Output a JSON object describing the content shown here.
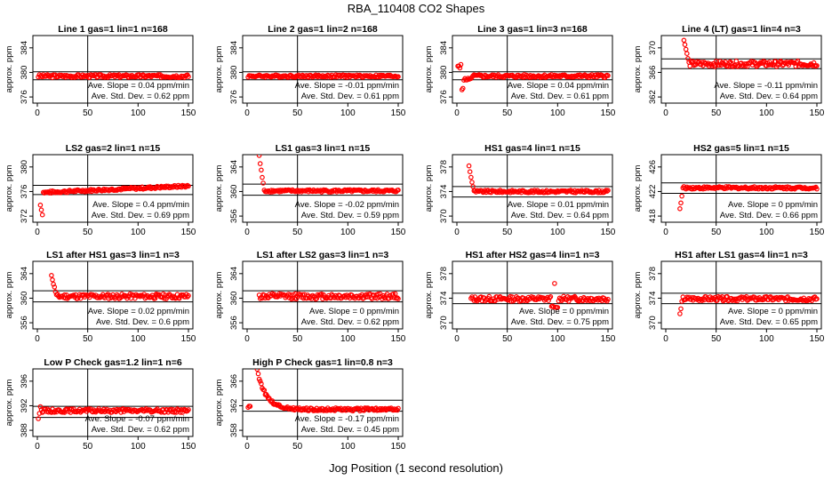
{
  "figure": {
    "title": "RBA_110408  CO2 Shapes",
    "xlabel": "Jog Position (1 second resolution)",
    "ylabel": "approx. ppm",
    "slope_prefix": "Ave. Slope = ",
    "slope_unit": " ppm/min",
    "sd_prefix": "Ave. Std. Dev. = ",
    "sd_unit": " ppm",
    "point_color": "#ff0000",
    "line_color": "#000000"
  },
  "chart_data": [
    {
      "type": "scatter",
      "title": "Line 1 gas=1 lin=1 n=168",
      "xlim": [
        0,
        150
      ],
      "xticks": [
        0,
        50,
        100,
        150
      ],
      "ylim": [
        375,
        386
      ],
      "yticks": [
        376,
        380,
        384
      ],
      "hlines": [
        378.8,
        380.1
      ],
      "vline": 50,
      "slope": "0.04",
      "sd": "0.62",
      "shape": "flat",
      "base": 379.4,
      "noise": 0.25,
      "start": 1
    },
    {
      "type": "scatter",
      "title": "Line 2 gas=1 lin=2 n=168",
      "xlim": [
        0,
        150
      ],
      "xticks": [
        0,
        50,
        100,
        150
      ],
      "ylim": [
        375,
        386
      ],
      "yticks": [
        376,
        380,
        384
      ],
      "hlines": [
        378.8,
        380.1
      ],
      "vline": 50,
      "slope": "-0.01",
      "sd": "0.61",
      "shape": "flat",
      "base": 379.4,
      "noise": 0.2,
      "start": 1
    },
    {
      "type": "scatter",
      "title": "Line 3 gas=1 lin=3 n=168",
      "xlim": [
        0,
        150
      ],
      "xticks": [
        0,
        50,
        100,
        150
      ],
      "ylim": [
        375,
        386
      ],
      "yticks": [
        376,
        380,
        384
      ],
      "hlines": [
        378.8,
        380.1
      ],
      "vline": 50,
      "slope": "0.04",
      "sd": "0.61",
      "shape": "dip",
      "base": 379.4,
      "noise": 0.25,
      "start": 1
    },
    {
      "type": "scatter",
      "title": "Line 4 (LT) gas=1 lin=4 n=3",
      "xlim": [
        0,
        150
      ],
      "xticks": [
        0,
        50,
        100,
        150
      ],
      "ylim": [
        361,
        372
      ],
      "yticks": [
        362,
        366,
        370
      ],
      "hlines": [
        366.6,
        368.2
      ],
      "vline": 50,
      "slope": "-0.11",
      "sd": "0.64",
      "shape": "spike",
      "base": 367.4,
      "peak": 371.3,
      "noise": 0.45,
      "start": 18
    },
    {
      "type": "scatter",
      "title": "LS2 gas=2 lin=1 n=15",
      "xlim": [
        0,
        150
      ],
      "xticks": [
        0,
        50,
        100,
        150
      ],
      "ylim": [
        371,
        382
      ],
      "yticks": [
        372,
        376,
        380
      ],
      "hlines": [
        375.5,
        377.0
      ],
      "vline": 50,
      "slope": "0.4",
      "sd": "0.69",
      "shape": "rise",
      "base": 375.8,
      "end": 376.9,
      "noise": 0.2,
      "start": 3
    },
    {
      "type": "scatter",
      "title": "LS1 gas=3 lin=1 n=15",
      "xlim": [
        0,
        150
      ],
      "xticks": [
        0,
        50,
        100,
        150
      ],
      "ylim": [
        355,
        366
      ],
      "yticks": [
        356,
        360,
        364
      ],
      "hlines": [
        359.4,
        361.2
      ],
      "vline": 50,
      "slope": "-0.02",
      "sd": "0.59",
      "shape": "spike",
      "base": 360.1,
      "peak": 365.7,
      "noise": 0.2,
      "start": 12
    },
    {
      "type": "scatter",
      "title": "HS1 gas=4 lin=1 n=15",
      "xlim": [
        0,
        150
      ],
      "xticks": [
        0,
        50,
        100,
        150
      ],
      "ylim": [
        369,
        380
      ],
      "yticks": [
        370,
        374,
        378
      ],
      "hlines": [
        373.1,
        374.8
      ],
      "vline": 50,
      "slope": "0.01",
      "sd": "0.64",
      "shape": "spike",
      "base": 374.0,
      "peak": 378.1,
      "noise": 0.2,
      "start": 12
    },
    {
      "type": "scatter",
      "title": "HS2 gas=5 lin=1 n=15",
      "xlim": [
        0,
        150
      ],
      "xticks": [
        0,
        50,
        100,
        150
      ],
      "ylim": [
        417,
        428
      ],
      "yticks": [
        418,
        422,
        426
      ],
      "hlines": [
        421.7,
        423.4
      ],
      "vline": 50,
      "slope": "0",
      "sd": "0.66",
      "shape": "lowstart",
      "base": 422.6,
      "low": 419.2,
      "noise": 0.2,
      "start": 14
    },
    {
      "type": "scatter",
      "title": "LS1 after HS1 gas=3 lin=1 n=3",
      "xlim": [
        0,
        150
      ],
      "xticks": [
        0,
        50,
        100,
        150
      ],
      "ylim": [
        355,
        366
      ],
      "yticks": [
        356,
        360,
        364
      ],
      "hlines": [
        359.4,
        361.2
      ],
      "vline": 50,
      "slope": "0.02",
      "sd": "0.6",
      "shape": "spike",
      "base": 360.3,
      "peak": 363.8,
      "noise": 0.4,
      "start": 14
    },
    {
      "type": "scatter",
      "title": "LS1 after LS2 gas=3 lin=1 n=3",
      "xlim": [
        0,
        150
      ],
      "xticks": [
        0,
        50,
        100,
        150
      ],
      "ylim": [
        355,
        366
      ],
      "yticks": [
        356,
        360,
        364
      ],
      "hlines": [
        359.4,
        361.2
      ],
      "vline": 50,
      "slope": "0",
      "sd": "0.62",
      "shape": "flat",
      "base": 360.3,
      "noise": 0.45,
      "start": 12
    },
    {
      "type": "scatter",
      "title": "HS1 after HS2 gas=4 lin=1 n=3",
      "xlim": [
        0,
        150
      ],
      "xticks": [
        0,
        50,
        100,
        150
      ],
      "ylim": [
        369,
        380
      ],
      "yticks": [
        370,
        374,
        378
      ],
      "hlines": [
        373.1,
        374.8
      ],
      "vline": 50,
      "slope": "0",
      "sd": "0.75",
      "shape": "bump",
      "base": 373.9,
      "noise": 0.4,
      "start": 14
    },
    {
      "type": "scatter",
      "title": "HS1 after LS1 gas=4 lin=1 n=3",
      "xlim": [
        0,
        150
      ],
      "xticks": [
        0,
        50,
        100,
        150
      ],
      "ylim": [
        369,
        380
      ],
      "yticks": [
        370,
        374,
        378
      ],
      "hlines": [
        373.1,
        374.8
      ],
      "vline": 50,
      "slope": "0",
      "sd": "0.65",
      "shape": "lowstart",
      "base": 373.9,
      "low": 371.4,
      "noise": 0.35,
      "start": 14
    },
    {
      "type": "scatter",
      "title": "Low P Check gas=1.2 lin=1 n=6",
      "xlim": [
        0,
        150
      ],
      "xticks": [
        0,
        50,
        100,
        150
      ],
      "ylim": [
        387,
        398
      ],
      "yticks": [
        388,
        392,
        396
      ],
      "hlines": [
        390.1,
        391.9
      ],
      "vline": 50,
      "slope": "-0.07",
      "sd": "0.62",
      "shape": "lowstart",
      "base": 391.2,
      "low": 389.9,
      "noise": 0.3,
      "start": 1
    },
    {
      "type": "scatter",
      "title": "High P Check gas=1 lin=0.8 n=3",
      "xlim": [
        0,
        150
      ],
      "xticks": [
        0,
        50,
        100,
        150
      ],
      "ylim": [
        357,
        368
      ],
      "yticks": [
        358,
        362,
        366
      ],
      "hlines": [
        361.1,
        362.9
      ],
      "vline": 50,
      "slope": "-0.17",
      "sd": "0.45",
      "shape": "decay",
      "base": 361.4,
      "peak": 367.8,
      "noise": 0.25,
      "start": 1
    }
  ]
}
